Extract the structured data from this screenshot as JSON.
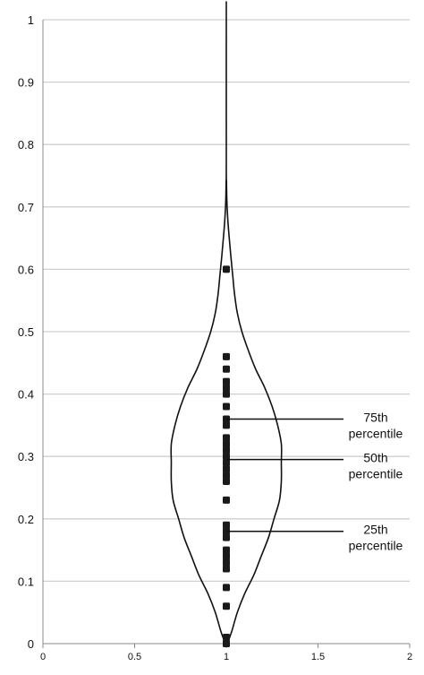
{
  "chart_data": {
    "type": "violin",
    "title": "",
    "xlabel": "",
    "ylabel": "",
    "xlim": [
      0,
      2
    ],
    "ylim": [
      0,
      1
    ],
    "xticks": [
      "0",
      "0.5",
      "1",
      "1.5",
      "2"
    ],
    "yticks": [
      "0",
      "0.1",
      "0.2",
      "0.3",
      "0.4",
      "0.5",
      "0.6",
      "0.7",
      "0.8",
      "0.9",
      "1"
    ],
    "grid": "horizontal",
    "violin": {
      "x": 1,
      "profile": [
        [
          0.0,
          0.005
        ],
        [
          0.02,
          0.03
        ],
        [
          0.05,
          0.06
        ],
        [
          0.08,
          0.1
        ],
        [
          0.11,
          0.15
        ],
        [
          0.14,
          0.19
        ],
        [
          0.17,
          0.23
        ],
        [
          0.2,
          0.26
        ],
        [
          0.23,
          0.29
        ],
        [
          0.26,
          0.3
        ],
        [
          0.29,
          0.3
        ],
        [
          0.32,
          0.3
        ],
        [
          0.35,
          0.28
        ],
        [
          0.38,
          0.25
        ],
        [
          0.41,
          0.21
        ],
        [
          0.44,
          0.16
        ],
        [
          0.47,
          0.12
        ],
        [
          0.5,
          0.085
        ],
        [
          0.53,
          0.06
        ],
        [
          0.56,
          0.045
        ],
        [
          0.59,
          0.035
        ],
        [
          0.62,
          0.025
        ],
        [
          0.65,
          0.016
        ],
        [
          0.68,
          0.008
        ],
        [
          0.71,
          0.003
        ],
        [
          0.74,
          0.001
        ],
        [
          0.77,
          0.0
        ],
        [
          1.0,
          0.0
        ]
      ]
    },
    "points": [
      0.0,
      0.01,
      0.06,
      0.09,
      0.12,
      0.13,
      0.14,
      0.15,
      0.17,
      0.18,
      0.19,
      0.23,
      0.26,
      0.27,
      0.28,
      0.29,
      0.3,
      0.31,
      0.32,
      0.33,
      0.35,
      0.36,
      0.38,
      0.4,
      0.41,
      0.42,
      0.44,
      0.46,
      0.6
    ],
    "annotations": [
      {
        "y": 0.36,
        "line1": "75th",
        "line2": "percentile"
      },
      {
        "y": 0.295,
        "line1": "50th",
        "line2": "percentile"
      },
      {
        "y": 0.18,
        "line1": "25th",
        "line2": "percentile"
      }
    ]
  }
}
